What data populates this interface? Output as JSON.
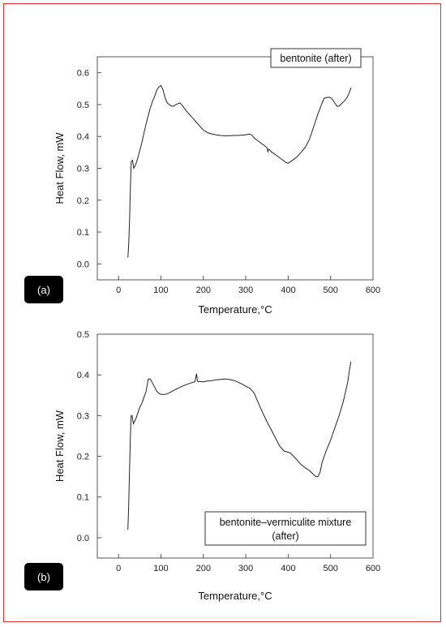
{
  "frame": {
    "border_color": "#e0302a"
  },
  "chart_data": [
    {
      "type": "line",
      "panel_label": "(a)",
      "xlabel": "Temperature,°C",
      "ylabel": "Heat Flow, mW",
      "xlim": [
        -50,
        600
      ],
      "ylim": [
        -0.05,
        0.65
      ],
      "x_ticks": [
        0,
        100,
        200,
        300,
        400,
        500,
        600
      ],
      "y_ticks": [
        "0.0",
        "0.1",
        "0.2",
        "0.3",
        "0.4",
        "0.5",
        "0.6"
      ],
      "legend": "bentonite (after)",
      "legend_position": "top-right",
      "line_color": "#222222",
      "series": [
        {
          "x": [
            22,
            24,
            26,
            28,
            30,
            33,
            36,
            40,
            45,
            50,
            55,
            60,
            65,
            70,
            75,
            80,
            85,
            90,
            95,
            100,
            105,
            110,
            115,
            120,
            125,
            130,
            135,
            140,
            145,
            150,
            160,
            170,
            180,
            190,
            200,
            210,
            220,
            230,
            240,
            250,
            260,
            270,
            280,
            290,
            300,
            305,
            310,
            315,
            320,
            330,
            340,
            345,
            350,
            352,
            354,
            356,
            360,
            370,
            380,
            390,
            395,
            400,
            410,
            420,
            430,
            440,
            450,
            460,
            470,
            480,
            485,
            490,
            495,
            500,
            505,
            510,
            515,
            520,
            525,
            530,
            535,
            540,
            545,
            548
          ],
          "y": [
            0.02,
            0.06,
            0.14,
            0.24,
            0.32,
            0.325,
            0.3,
            0.31,
            0.33,
            0.355,
            0.38,
            0.41,
            0.44,
            0.465,
            0.49,
            0.51,
            0.525,
            0.545,
            0.555,
            0.56,
            0.545,
            0.52,
            0.505,
            0.5,
            0.495,
            0.495,
            0.5,
            0.503,
            0.505,
            0.498,
            0.48,
            0.465,
            0.45,
            0.435,
            0.42,
            0.412,
            0.408,
            0.405,
            0.403,
            0.402,
            0.402,
            0.403,
            0.403,
            0.404,
            0.405,
            0.407,
            0.407,
            0.404,
            0.395,
            0.385,
            0.375,
            0.37,
            0.365,
            0.352,
            0.36,
            0.358,
            0.352,
            0.343,
            0.333,
            0.323,
            0.318,
            0.316,
            0.325,
            0.335,
            0.35,
            0.365,
            0.39,
            0.43,
            0.47,
            0.505,
            0.52,
            0.522,
            0.523,
            0.522,
            0.515,
            0.505,
            0.495,
            0.495,
            0.502,
            0.508,
            0.515,
            0.525,
            0.54,
            0.553
          ]
        }
      ]
    },
    {
      "type": "line",
      "panel_label": "(b)",
      "xlabel": "Temperature,°C",
      "ylabel": "Heat Flow, mW",
      "xlim": [
        -50,
        600
      ],
      "ylim": [
        -0.05,
        0.5
      ],
      "x_ticks": [
        0,
        100,
        200,
        300,
        400,
        500,
        600
      ],
      "y_ticks": [
        "0.0",
        "0.1",
        "0.2",
        "0.3",
        "0.4",
        "0.5"
      ],
      "legend_lines": [
        "bentonite–vermiculite mixture",
        "(after)"
      ],
      "legend_position": "bottom-right",
      "line_color": "#222222",
      "series": [
        {
          "x": [
            22,
            24,
            26,
            28,
            30,
            32,
            35,
            40,
            45,
            50,
            55,
            60,
            65,
            70,
            75,
            80,
            85,
            90,
            95,
            100,
            110,
            120,
            130,
            140,
            150,
            160,
            170,
            180,
            184,
            186,
            188,
            190,
            200,
            210,
            220,
            230,
            240,
            250,
            260,
            270,
            280,
            290,
            300,
            310,
            320,
            330,
            340,
            350,
            360,
            370,
            380,
            390,
            400,
            405,
            410,
            420,
            430,
            440,
            450,
            455,
            460,
            465,
            470,
            475,
            480,
            490,
            500,
            510,
            520,
            530,
            540,
            545,
            548
          ],
          "y": [
            0.02,
            0.08,
            0.17,
            0.25,
            0.3,
            0.3,
            0.28,
            0.29,
            0.305,
            0.32,
            0.33,
            0.345,
            0.36,
            0.39,
            0.39,
            0.38,
            0.37,
            0.36,
            0.355,
            0.352,
            0.352,
            0.356,
            0.362,
            0.367,
            0.372,
            0.376,
            0.38,
            0.383,
            0.403,
            0.385,
            0.383,
            0.384,
            0.383,
            0.385,
            0.386,
            0.388,
            0.389,
            0.39,
            0.389,
            0.387,
            0.383,
            0.378,
            0.372,
            0.367,
            0.355,
            0.33,
            0.307,
            0.285,
            0.265,
            0.245,
            0.225,
            0.213,
            0.21,
            0.208,
            0.203,
            0.192,
            0.18,
            0.172,
            0.165,
            0.16,
            0.155,
            0.15,
            0.15,
            0.16,
            0.185,
            0.215,
            0.24,
            0.27,
            0.3,
            0.335,
            0.38,
            0.415,
            0.432
          ]
        }
      ]
    }
  ]
}
